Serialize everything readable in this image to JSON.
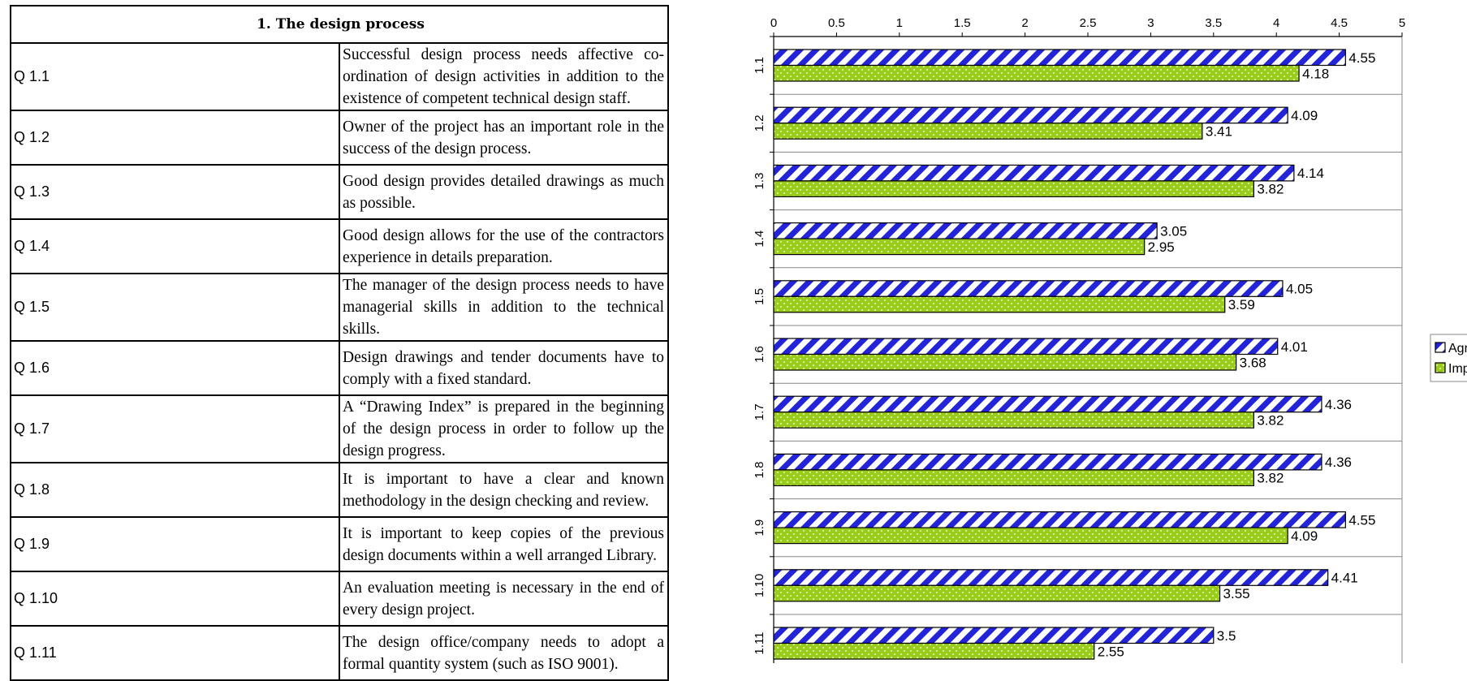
{
  "table": {
    "header": "1. The design process",
    "rows": [
      {
        "id": "Q 1.1",
        "text": "Successful design process needs affective co-ordination of design activities in addition to the existence of competent technical design staff."
      },
      {
        "id": "Q 1.2",
        "text": "Owner of the project has an important role in the success of the design process."
      },
      {
        "id": "Q 1.3",
        "text": "Good design provides detailed drawings as much as possible."
      },
      {
        "id": "Q 1.4",
        "text": "Good design allows for the use of the contractors experience in details preparation."
      },
      {
        "id": "Q 1.5",
        "text": "The manager of the design process needs to have managerial skills in addition to the technical skills."
      },
      {
        "id": "Q 1.6",
        "text": "Design drawings and tender documents have to comply with a fixed standard."
      },
      {
        "id": "Q 1.7",
        "text": "A “Drawing Index” is prepared in the beginning of the design process in order to follow up the design progress."
      },
      {
        "id": "Q 1.8",
        "text": "It is important to have a clear and known methodology in the design checking and review."
      },
      {
        "id": "Q 1.9",
        "text": "It is important to keep copies of the previous design documents within a well arranged Library."
      },
      {
        "id": "Q 1.10",
        "text": "An evaluation meeting is necessary in the end of every design project."
      },
      {
        "id": "Q 1.11",
        "text": "The design office/company needs to adopt a formal quantity system (such as ISO 9001)."
      }
    ]
  },
  "chart_data": {
    "type": "bar",
    "orientation": "horizontal",
    "categories": [
      "1.1",
      "1.2",
      "1.3",
      "1.4",
      "1.5",
      "1.6",
      "1.7",
      "1.8",
      "1.9",
      "1.10",
      "1.11"
    ],
    "series": [
      {
        "name": "Agreement",
        "values": [
          4.55,
          4.09,
          4.14,
          3.05,
          4.05,
          4.01,
          4.36,
          4.36,
          4.55,
          4.41,
          3.5
        ],
        "color": "#2323d8",
        "pattern": "diagonal-stripes"
      },
      {
        "name": "Implementation",
        "values": [
          4.18,
          3.41,
          3.82,
          2.95,
          3.59,
          3.68,
          3.82,
          3.82,
          4.09,
          3.55,
          2.55
        ],
        "color": "#9acd1a",
        "pattern": "dots"
      }
    ],
    "xlim": [
      0,
      5
    ],
    "ticks": [
      "0",
      "0.5",
      "1",
      "1.5",
      "2",
      "2.5",
      "3",
      "3.5",
      "4",
      "4.5",
      "5"
    ],
    "axis_position": "top",
    "legend": "right",
    "title": "",
    "xlabel": "",
    "ylabel": ""
  }
}
